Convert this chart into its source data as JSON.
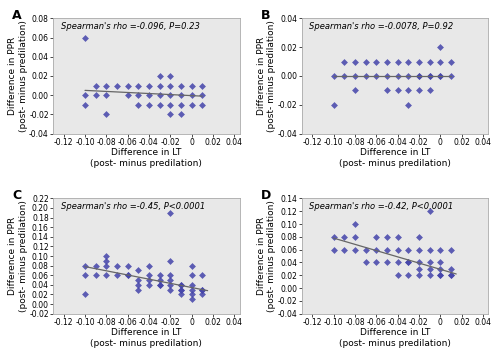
{
  "panels": [
    {
      "label": "A",
      "spearman_text": "Spearman's rho =-0.096, P=0.23",
      "xlim": [
        -0.13,
        0.045
      ],
      "ylim": [
        -0.04,
        0.08
      ],
      "yticks": [
        -0.04,
        -0.02,
        0.0,
        0.02,
        0.04,
        0.06,
        0.08
      ],
      "xticks": [
        -0.12,
        -0.1,
        -0.08,
        -0.06,
        -0.04,
        -0.02,
        0.0,
        0.02,
        0.04
      ],
      "x": [
        -0.1,
        -0.1,
        -0.1,
        -0.09,
        -0.09,
        -0.08,
        -0.08,
        -0.08,
        -0.07,
        -0.06,
        -0.06,
        -0.05,
        -0.05,
        -0.05,
        -0.04,
        -0.04,
        -0.04,
        -0.03,
        -0.03,
        -0.03,
        -0.03,
        -0.02,
        -0.02,
        -0.02,
        -0.02,
        -0.02,
        -0.01,
        -0.01,
        -0.01,
        -0.01,
        0.0,
        0.0,
        0.0,
        0.01,
        0.01,
        0.01
      ],
      "y": [
        0.0,
        -0.01,
        0.06,
        0.01,
        0.0,
        0.01,
        0.0,
        -0.02,
        0.01,
        0.01,
        0.0,
        0.01,
        0.0,
        -0.01,
        0.01,
        0.0,
        -0.01,
        0.02,
        0.01,
        0.0,
        -0.01,
        0.02,
        0.01,
        0.0,
        -0.01,
        -0.02,
        0.01,
        0.0,
        -0.01,
        -0.02,
        0.01,
        0.0,
        -0.01,
        0.01,
        0.0,
        -0.01
      ],
      "trend_x": [
        -0.1,
        0.01
      ],
      "trend_y": [
        0.005,
        -0.001
      ]
    },
    {
      "label": "B",
      "spearman_text": "Spearman's rho =-0.0078, P=0.92",
      "xlim": [
        -0.13,
        0.045
      ],
      "ylim": [
        -0.04,
        0.04
      ],
      "yticks": [
        -0.04,
        -0.02,
        0.0,
        0.02,
        0.04
      ],
      "xticks": [
        -0.12,
        -0.1,
        -0.08,
        -0.06,
        -0.04,
        -0.02,
        0.0,
        0.02,
        0.04
      ],
      "x": [
        -0.1,
        -0.1,
        -0.09,
        -0.09,
        -0.08,
        -0.08,
        -0.08,
        -0.07,
        -0.07,
        -0.06,
        -0.06,
        -0.05,
        -0.05,
        -0.05,
        -0.04,
        -0.04,
        -0.04,
        -0.03,
        -0.03,
        -0.03,
        -0.03,
        -0.02,
        -0.02,
        -0.02,
        -0.02,
        -0.01,
        -0.01,
        -0.01,
        -0.01,
        0.0,
        0.0,
        0.0,
        0.0,
        0.01,
        0.01
      ],
      "y": [
        -0.02,
        0.0,
        0.01,
        0.0,
        0.01,
        0.0,
        -0.01,
        0.01,
        0.0,
        0.01,
        0.0,
        0.01,
        0.0,
        -0.01,
        0.01,
        0.0,
        -0.01,
        0.01,
        0.0,
        -0.01,
        -0.02,
        0.01,
        0.0,
        0.0,
        -0.01,
        0.01,
        0.0,
        0.0,
        -0.01,
        0.02,
        0.01,
        0.0,
        0.0,
        0.01,
        0.0
      ],
      "trend_x": [
        -0.1,
        0.01
      ],
      "trend_y": [
        0.0,
        0.0
      ]
    },
    {
      "label": "C",
      "spearman_text": "Spearman's rho =-0.45, P<0.0001",
      "xlim": [
        -0.13,
        0.045
      ],
      "ylim": [
        -0.02,
        0.22
      ],
      "yticks": [
        -0.02,
        0.0,
        0.02,
        0.04,
        0.06,
        0.08,
        0.1,
        0.12,
        0.14,
        0.16,
        0.18,
        0.2,
        0.22
      ],
      "xticks": [
        -0.12,
        -0.1,
        -0.08,
        -0.06,
        -0.04,
        -0.02,
        0.0,
        0.02,
        0.04
      ],
      "x": [
        -0.1,
        -0.1,
        -0.1,
        -0.09,
        -0.09,
        -0.08,
        -0.08,
        -0.08,
        -0.08,
        -0.07,
        -0.07,
        -0.06,
        -0.06,
        -0.06,
        -0.05,
        -0.05,
        -0.05,
        -0.05,
        -0.04,
        -0.04,
        -0.04,
        -0.04,
        -0.03,
        -0.03,
        -0.03,
        -0.03,
        -0.02,
        -0.02,
        -0.02,
        -0.02,
        -0.02,
        -0.02,
        -0.01,
        -0.01,
        -0.01,
        -0.01,
        -0.01,
        0.0,
        0.0,
        0.0,
        0.0,
        0.0,
        0.0,
        0.01,
        0.01,
        0.01,
        0.01
      ],
      "y": [
        0.02,
        0.06,
        0.08,
        0.06,
        0.08,
        0.06,
        0.08,
        0.09,
        0.1,
        0.06,
        0.08,
        0.06,
        0.08,
        0.06,
        0.03,
        0.04,
        0.05,
        0.07,
        0.04,
        0.05,
        0.06,
        0.08,
        0.04,
        0.05,
        0.04,
        0.06,
        0.03,
        0.04,
        0.05,
        0.06,
        0.09,
        0.19,
        0.03,
        0.04,
        0.02,
        0.03,
        0.04,
        0.01,
        0.02,
        0.03,
        0.04,
        0.06,
        0.08,
        0.02,
        0.03,
        0.03,
        0.06
      ],
      "trend_x": [
        -0.1,
        0.015
      ],
      "trend_y": [
        0.078,
        0.028
      ]
    },
    {
      "label": "D",
      "spearman_text": "Spearman's rho =-0.42, P<0.0001",
      "xlim": [
        -0.13,
        0.045
      ],
      "ylim": [
        -0.04,
        0.14
      ],
      "yticks": [
        -0.04,
        -0.02,
        0.0,
        0.02,
        0.04,
        0.06,
        0.08,
        0.1,
        0.12,
        0.14
      ],
      "xticks": [
        -0.12,
        -0.1,
        -0.08,
        -0.06,
        -0.04,
        -0.02,
        0.0,
        0.02,
        0.04
      ],
      "x": [
        -0.1,
        -0.1,
        -0.09,
        -0.09,
        -0.08,
        -0.08,
        -0.08,
        -0.07,
        -0.07,
        -0.06,
        -0.06,
        -0.06,
        -0.05,
        -0.05,
        -0.05,
        -0.04,
        -0.04,
        -0.04,
        -0.04,
        -0.03,
        -0.03,
        -0.03,
        -0.03,
        -0.02,
        -0.02,
        -0.02,
        -0.02,
        -0.02,
        -0.01,
        -0.01,
        -0.01,
        -0.01,
        -0.01,
        0.0,
        0.0,
        0.0,
        0.0,
        0.0,
        0.01,
        0.01,
        0.01,
        0.01
      ],
      "y": [
        0.06,
        0.08,
        0.06,
        0.08,
        0.06,
        0.08,
        0.1,
        0.04,
        0.06,
        0.04,
        0.06,
        0.08,
        0.04,
        0.06,
        0.08,
        0.04,
        0.06,
        0.08,
        0.02,
        0.04,
        0.06,
        0.02,
        0.04,
        0.04,
        0.06,
        0.02,
        0.03,
        0.08,
        0.02,
        0.03,
        0.04,
        0.06,
        0.12,
        0.02,
        0.03,
        0.04,
        0.02,
        0.06,
        0.02,
        0.02,
        0.03,
        0.06
      ],
      "trend_x": [
        -0.1,
        0.015
      ],
      "trend_y": [
        0.078,
        0.022
      ]
    }
  ],
  "point_color": "#4444aa",
  "line_color": "#666666",
  "markersize": 3.5,
  "xlabel": "Difference in LT\n(post- minus predilation)",
  "ylabel": "Difference in PPR\n(post- minus predilation)",
  "label_fontsize": 6.5,
  "tick_fontsize": 5.5,
  "annot_fontsize": 6.0,
  "panel_label_fontsize": 9,
  "bg_color": "#e8e8e8"
}
